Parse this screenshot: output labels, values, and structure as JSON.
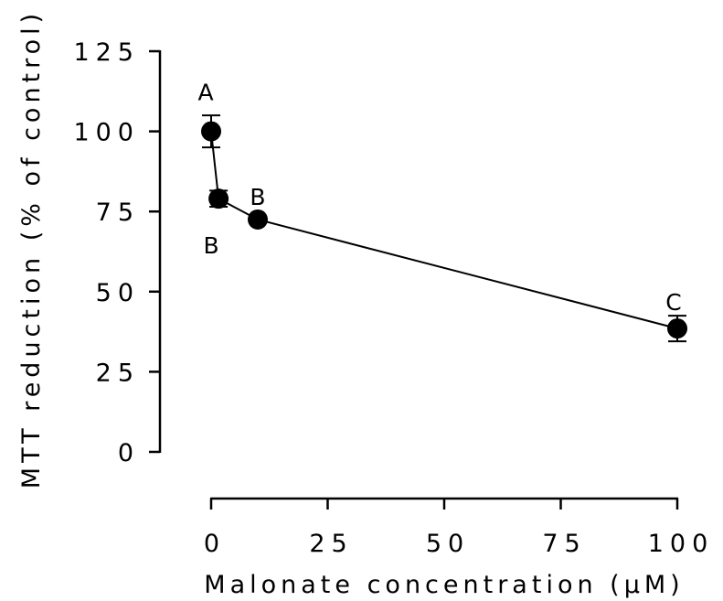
{
  "chart_data": {
    "type": "line",
    "title": "",
    "xlabel": "Malonate concentration (µM)",
    "ylabel": "MTT reduction (% of control)",
    "xlim": [
      0,
      100
    ],
    "ylim": [
      0,
      125
    ],
    "x_ticks": [
      0,
      25,
      50,
      75,
      100
    ],
    "y_ticks": [
      0,
      25,
      50,
      75,
      100,
      125
    ],
    "grid": false,
    "legend": "none",
    "colors": {
      "line": "#000000",
      "marker": "#000000"
    },
    "series": [
      {
        "x": [
          0,
          1,
          10,
          100
        ],
        "y": [
          100,
          79,
          72.5,
          38.5
        ],
        "error": [
          5,
          2.5,
          1,
          4
        ],
        "letters": [
          "A",
          "B",
          "B",
          "C"
        ]
      }
    ]
  }
}
